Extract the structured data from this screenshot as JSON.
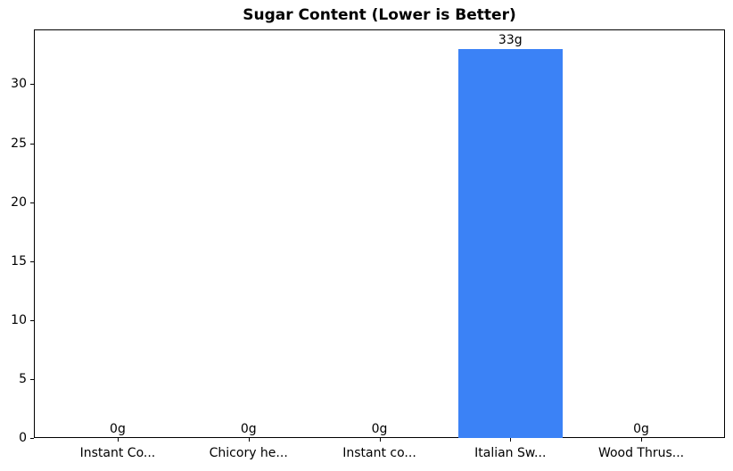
{
  "chart_data": {
    "type": "bar",
    "title": "Sugar Content (Lower is Better)",
    "categories": [
      "Instant Co...",
      "Chicory he...",
      "Instant co...",
      "Italian Sw...",
      "Wood Thrus..."
    ],
    "values": [
      0,
      0,
      0,
      33,
      0
    ],
    "value_labels": [
      "0g",
      "0g",
      "0g",
      "33g",
      "0g"
    ],
    "unit_suffix": "g",
    "bar_color": "#3b82f6",
    "xlabel": "",
    "ylabel": "",
    "yticks": [
      0,
      5,
      10,
      15,
      20,
      25,
      30
    ],
    "ylim": [
      0,
      34.65
    ],
    "xlim": [
      -0.64,
      4.64
    ],
    "bar_width": 0.8,
    "grid": false,
    "legend": "none",
    "spine_color": "#000000",
    "background_color": "#ffffff"
  }
}
